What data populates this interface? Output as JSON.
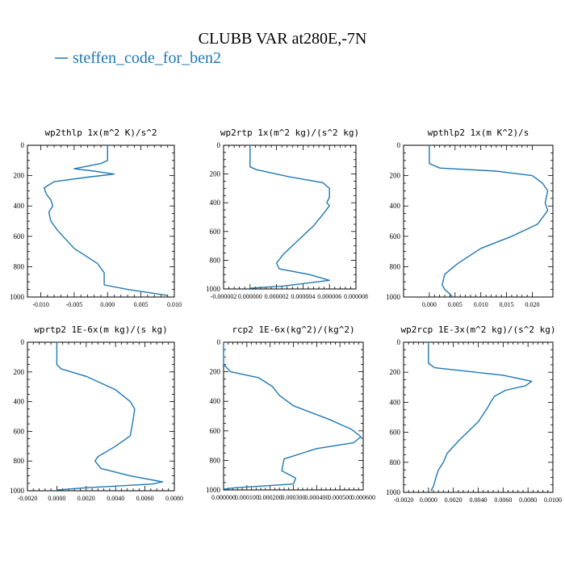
{
  "figure": {
    "title": "CLUBB VAR at280E,-7N",
    "legend": [
      {
        "name": "steffen_code_for_ben2",
        "color": "#1f77b4"
      }
    ]
  },
  "chart_data": [
    {
      "type": "line",
      "title": "wp2thlp   1x(m^2 K)/s^2",
      "series_name": "steffen_code_for_ben2",
      "color": "#1f77b4",
      "xlim": [
        -0.012,
        0.01
      ],
      "ylim": [
        1000,
        0
      ],
      "xticks": [
        -0.01,
        -0.005,
        0.0,
        0.005,
        0.01
      ],
      "xtick_labels": [
        "-0.010",
        "-0.005",
        "0.000",
        "0.005",
        "0.010"
      ],
      "yticks": [
        0,
        200,
        400,
        600,
        800,
        1000
      ],
      "ytick_labels": [
        "0",
        "200",
        "400",
        "600",
        "800",
        "1000"
      ],
      "x": [
        0.0,
        0.0,
        -0.001,
        -0.005,
        -0.002,
        0.001,
        -0.003,
        -0.008,
        -0.0095,
        -0.0092,
        -0.0085,
        -0.0082,
        -0.0088,
        -0.0085,
        -0.0075,
        -0.005,
        -0.0015,
        -0.0005,
        -0.0005,
        0.003,
        0.009
      ],
      "y": [
        0,
        100,
        120,
        155,
        170,
        190,
        210,
        240,
        280,
        320,
        360,
        400,
        440,
        500,
        560,
        680,
        780,
        840,
        920,
        950,
        990
      ]
    },
    {
      "type": "line",
      "title": "wp2rtp   1x(m^2 kg)/(s^2 kg)",
      "series_name": "steffen_code_for_ben2",
      "color": "#1f77b4",
      "xlim": [
        -2e-06,
        8e-06
      ],
      "ylim": [
        1000,
        0
      ],
      "xticks": [
        -2e-06,
        0.0,
        2e-06,
        4e-06,
        6e-06,
        8e-06
      ],
      "xtick_labels": [
        "-0.000002",
        "0.000000",
        "0.000002",
        "0.000004",
        "0.000006",
        "0.000008"
      ],
      "yticks": [
        0,
        200,
        400,
        600,
        800,
        1000
      ],
      "ytick_labels": [
        "0",
        "200",
        "400",
        "600",
        "800",
        "1000"
      ],
      "x": [
        0.0,
        0.0,
        5e-07,
        3e-06,
        5.5e-06,
        6e-06,
        6e-06,
        5.8e-06,
        6e-06,
        5.6e-06,
        4.8e-06,
        4e-06,
        2.5e-06,
        2e-06,
        2.2e-06,
        4.5e-06,
        6e-06,
        2.5e-06,
        0.0
      ],
      "y": [
        0,
        150,
        170,
        220,
        260,
        300,
        360,
        400,
        420,
        470,
        560,
        630,
        760,
        820,
        860,
        900,
        940,
        980,
        995
      ]
    },
    {
      "type": "line",
      "title": "wpthlp2   1x(m K^2)/s",
      "series_name": "steffen_code_for_ben2",
      "color": "#1f77b4",
      "xlim": [
        -0.005,
        0.024
      ],
      "ylim": [
        1000,
        0
      ],
      "xticks": [
        0.0,
        0.005,
        0.01,
        0.015,
        0.02
      ],
      "xtick_labels": [
        "0.000",
        "0.005",
        "0.010",
        "0.015",
        "0.020"
      ],
      "yticks": [
        0,
        200,
        400,
        600,
        800,
        1000
      ],
      "ytick_labels": [
        "0",
        "200",
        "400",
        "600",
        "800",
        "1000"
      ],
      "x": [
        0.0,
        0.0,
        0.002,
        0.013,
        0.02,
        0.022,
        0.023,
        0.0225,
        0.023,
        0.021,
        0.016,
        0.01,
        0.0055,
        0.003,
        0.0025,
        0.003,
        0.004,
        0.0045
      ],
      "y": [
        0,
        120,
        150,
        170,
        200,
        250,
        300,
        380,
        430,
        520,
        600,
        680,
        780,
        850,
        920,
        950,
        980,
        1000
      ]
    },
    {
      "type": "line",
      "title": "wprtp2   1E-6x(m kg)/(s kg)",
      "series_name": "steffen_code_for_ben2",
      "color": "#1f77b4",
      "xlim": [
        -0.002,
        0.008
      ],
      "ylim": [
        1000,
        0
      ],
      "xticks": [
        -0.002,
        0.0,
        0.002,
        0.004,
        0.006,
        0.008
      ],
      "xtick_labels": [
        "-0.0020",
        "0.0000",
        "0.0020",
        "0.0040",
        "0.0060",
        "0.0080"
      ],
      "yticks": [
        0,
        200,
        400,
        600,
        800,
        1000
      ],
      "ytick_labels": [
        "0",
        "200",
        "400",
        "600",
        "800",
        "1000"
      ],
      "x": [
        0.0,
        0.0,
        0.0003,
        0.002,
        0.004,
        0.005,
        0.0053,
        0.0052,
        0.005,
        0.004,
        0.0028,
        0.0026,
        0.003,
        0.005,
        0.0072,
        0.0065,
        0.002,
        0.0
      ],
      "y": [
        0,
        150,
        180,
        230,
        320,
        400,
        450,
        520,
        630,
        700,
        770,
        800,
        850,
        900,
        940,
        955,
        980,
        995
      ]
    },
    {
      "type": "line",
      "title": "rcp2   1E-6x(kg^2)/(kg^2)",
      "series_name": "steffen_code_for_ben2",
      "color": "#1f77b4",
      "xlim": [
        0.0,
        0.0006
      ],
      "ylim": [
        1000,
        0
      ],
      "xticks": [
        0.0,
        0.0001,
        0.0002,
        0.0003,
        0.0004,
        0.0005,
        0.0006
      ],
      "xtick_labels": [
        "0.000000",
        "0.000100",
        "0.000200",
        "0.000300",
        "0.000400",
        "0.000500",
        "0.000600"
      ],
      "yticks": [
        0,
        200,
        400,
        600,
        800,
        1000
      ],
      "ytick_labels": [
        "0",
        "200",
        "400",
        "600",
        "800",
        "1000"
      ],
      "x": [
        0.0,
        0.0,
        3e-05,
        0.00015,
        0.00021,
        0.00024,
        0.0003,
        0.00045,
        0.00055,
        0.00059,
        0.00056,
        0.0004,
        0.00026,
        0.00025,
        0.00031,
        0.0003,
        5e-05,
        0.0
      ],
      "y": [
        0,
        150,
        200,
        240,
        300,
        360,
        430,
        520,
        590,
        640,
        680,
        720,
        790,
        870,
        920,
        960,
        985,
        995
      ]
    },
    {
      "type": "line",
      "title": "wp2rcp   1E-3x(m^2 kg)/(s^2 kg)",
      "series_name": "steffen_code_for_ben2",
      "color": "#1f77b4",
      "xlim": [
        -0.002,
        0.01
      ],
      "ylim": [
        1000,
        0
      ],
      "xticks": [
        -0.002,
        0.0,
        0.002,
        0.004,
        0.006,
        0.008,
        0.01
      ],
      "xtick_labels": [
        "-0.0020",
        "0.0000",
        "0.0020",
        "0.0040",
        "0.0060",
        "0.0080",
        "0.0100"
      ],
      "yticks": [
        0,
        200,
        400,
        600,
        800,
        1000
      ],
      "ytick_labels": [
        "0",
        "200",
        "400",
        "600",
        "800",
        "1000"
      ],
      "x": [
        0.0,
        0.0,
        0.0005,
        0.006,
        0.0083,
        0.0078,
        0.0062,
        0.0053,
        0.005,
        0.0048,
        0.004,
        0.0025,
        0.0015,
        0.0012,
        0.0008,
        0.0006,
        0.0004,
        0.0002
      ],
      "y": [
        0,
        140,
        170,
        220,
        260,
        290,
        320,
        360,
        400,
        430,
        530,
        650,
        740,
        800,
        850,
        900,
        960,
        990
      ]
    }
  ]
}
